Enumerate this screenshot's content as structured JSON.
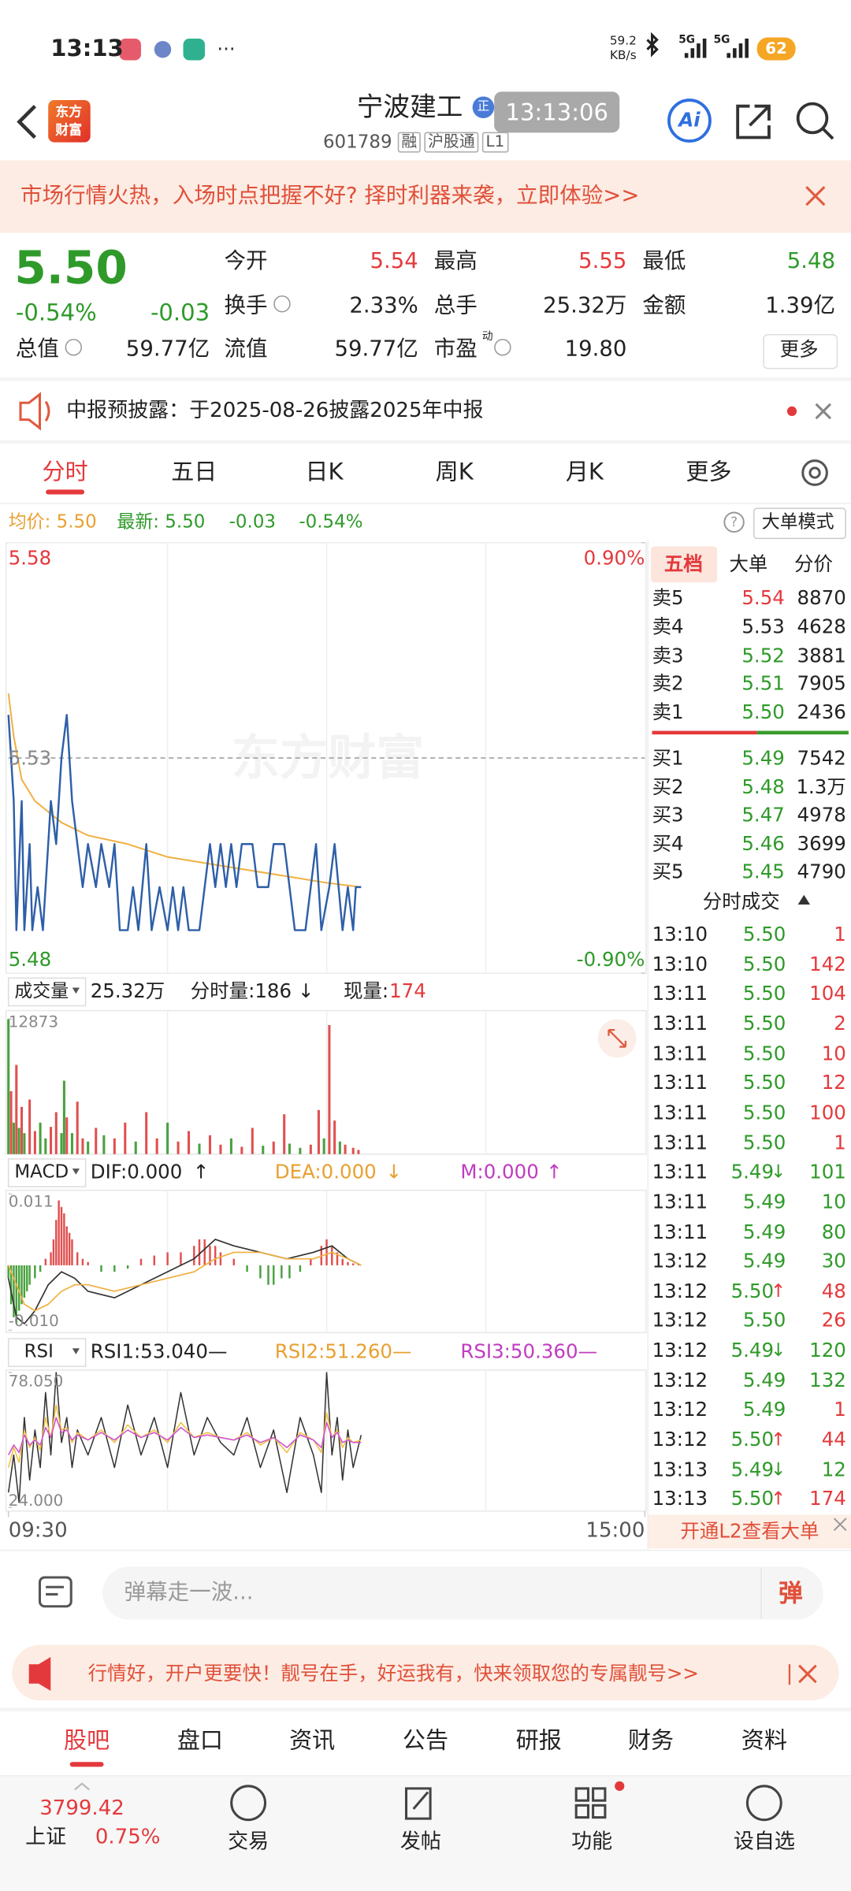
{
  "status_bar": {
    "time": "13:13",
    "speed": "59.2",
    "speed_unit": "KB/s",
    "net1": "5G",
    "net2": "5G",
    "battery": "62"
  },
  "header": {
    "logo_top": "东方",
    "logo_bottom": "财富",
    "name": "宁波建工",
    "badge": "正",
    "time": "13:13:06",
    "code": "601789",
    "tags": [
      "融",
      "沪股通",
      "L1"
    ],
    "ai": "Ai"
  },
  "banner": {
    "text": "市场行情火热，入场时点把握不好? 择时利器来袭，立即体验>>"
  },
  "quote": {
    "price": "5.50",
    "change_pct": "-0.54%",
    "change": "-0.03",
    "fields": [
      {
        "label": "今开",
        "value": "5.54",
        "color": "up"
      },
      {
        "label": "最高",
        "value": "5.55",
        "color": "up"
      },
      {
        "label": "最低",
        "value": "5.48",
        "color": "down"
      },
      {
        "label": "换手",
        "value": "2.33%"
      },
      {
        "label": "总手",
        "value": "25.32万"
      },
      {
        "label": "金额",
        "value": "1.39亿"
      },
      {
        "label": "总值",
        "value": "59.77亿"
      },
      {
        "label": "流值",
        "value": "59.77亿"
      },
      {
        "label": "市盈",
        "sup": "动",
        "value": "19.80"
      }
    ],
    "more": "更多"
  },
  "notice": {
    "text": "中报预披露：于2025-08-26披露2025年中报"
  },
  "tabs": [
    "分时",
    "五日",
    "日K",
    "周K",
    "月K",
    "更多"
  ],
  "legend": {
    "avg": "均价: 5.50",
    "latest": "最新: 5.50",
    "change": "-0.03",
    "pct": "-0.54%",
    "help": "?",
    "mode": "大单模式"
  },
  "chart": {
    "watermark": "东方财富",
    "xlim": [
      0,
      240
    ],
    "xticks": [
      {
        "value": 0,
        "label": "09:30"
      },
      {
        "value": 240,
        "label": "15:00"
      }
    ],
    "price": {
      "ylim": [
        5.48,
        5.58
      ],
      "yticks": [
        5.58,
        5.53,
        5.48
      ],
      "y2lim": [
        -0.9,
        0.9
      ],
      "y2ticks": [
        {
          "value": 0.9,
          "label": "0.90%"
        },
        {
          "value": -0.9,
          "label": "-0.90%"
        }
      ],
      "color": "#2e5fa8",
      "x": [
        0,
        2,
        3,
        5,
        6,
        8,
        9,
        11,
        13,
        16,
        18,
        20,
        22,
        24,
        26,
        28,
        30,
        33,
        35,
        38,
        40,
        42,
        45,
        47,
        49,
        52,
        54,
        57,
        60,
        62,
        64,
        66,
        68,
        72,
        74,
        76,
        78,
        80,
        82,
        84,
        86,
        88,
        92,
        94,
        98,
        100,
        104,
        106,
        108,
        112,
        114,
        116,
        118,
        121,
        123,
        126,
        128,
        130,
        131,
        133
      ],
      "values": [
        5.54,
        5.52,
        5.49,
        5.52,
        5.49,
        5.51,
        5.49,
        5.5,
        5.49,
        5.52,
        5.51,
        5.53,
        5.54,
        5.52,
        5.51,
        5.5,
        5.51,
        5.5,
        5.51,
        5.5,
        5.51,
        5.49,
        5.49,
        5.5,
        5.49,
        5.51,
        5.49,
        5.5,
        5.49,
        5.5,
        5.49,
        5.5,
        5.49,
        5.49,
        5.5,
        5.51,
        5.5,
        5.51,
        5.5,
        5.51,
        5.5,
        5.51,
        5.51,
        5.5,
        5.5,
        5.51,
        5.51,
        5.5,
        5.49,
        5.49,
        5.5,
        5.51,
        5.49,
        5.5,
        5.51,
        5.49,
        5.5,
        5.49,
        5.5,
        5.5
      ]
    },
    "avg": {
      "color": "#f0b040",
      "x": [
        0,
        2,
        5,
        10,
        20,
        30,
        45,
        60,
        80,
        100,
        120,
        133
      ],
      "values": [
        5.545,
        5.535,
        5.525,
        5.52,
        5.515,
        5.512,
        5.51,
        5.507,
        5.505,
        5.503,
        5.501,
        5.5
      ]
    },
    "volume": {
      "label": "成交量",
      "total": "25.32万",
      "minute": "分时量:186",
      "minute_arrow": "↓",
      "current_label": "现量:",
      "current": "174",
      "ylim": [
        0,
        12873
      ],
      "yticks": [
        12873
      ],
      "x": [
        0,
        1,
        2,
        3,
        4,
        5,
        6,
        8,
        10,
        12,
        14,
        16,
        18,
        20,
        21,
        22,
        24,
        26,
        28,
        30,
        33,
        36,
        40,
        44,
        48,
        52,
        56,
        60,
        64,
        68,
        72,
        76,
        80,
        84,
        88,
        92,
        96,
        100,
        104,
        106,
        110,
        114,
        117,
        119,
        121,
        123,
        125,
        127,
        130,
        132
      ],
      "values": [
        12873,
        6000,
        3000,
        8500,
        2500,
        4500,
        2000,
        5200,
        2200,
        3000,
        1500,
        2600,
        4000,
        2000,
        7000,
        3500,
        2000,
        5000,
        1500,
        1200,
        2500,
        1800,
        1500,
        3000,
        1200,
        4000,
        1500,
        3000,
        1200,
        2200,
        1000,
        1800,
        900,
        1500,
        700,
        2500,
        800,
        1200,
        3800,
        1000,
        600,
        900,
        4200,
        1500,
        12300,
        3200,
        1200,
        900,
        600,
        400
      ],
      "up": [
        0,
        1,
        0,
        1,
        0,
        1,
        0,
        1,
        1,
        0,
        0,
        1,
        1,
        0,
        0,
        1,
        0,
        1,
        1,
        0,
        1,
        0,
        1,
        1,
        0,
        1,
        1,
        0,
        1,
        1,
        0,
        1,
        1,
        0,
        1,
        1,
        0,
        1,
        1,
        0,
        0,
        1,
        1,
        0,
        1,
        1,
        0,
        1,
        1,
        1
      ]
    },
    "macd": {
      "label": "MACD",
      "dif": "DIF:0.000",
      "dif_arrow": "↑",
      "dea": "DEA:0.000",
      "dea_arrow": "↓",
      "m": "M:0.000",
      "m_arrow": "↑",
      "ylim": [
        -0.01,
        0.011
      ],
      "yticks": [
        {
          "value": 0.011,
          "label": "0.011"
        },
        {
          "value": -0.01,
          "label": "-0.010"
        }
      ],
      "hist_x": [
        0,
        1,
        2,
        3,
        4,
        5,
        6,
        7,
        8,
        10,
        12,
        14,
        16,
        17,
        18,
        19,
        20,
        21,
        22,
        23,
        24,
        26,
        28,
        30,
        35,
        40,
        45,
        50,
        55,
        60,
        65,
        70,
        72,
        74,
        76,
        78,
        80,
        85,
        90,
        95,
        98,
        100,
        103,
        106,
        110,
        114,
        118,
        120,
        122,
        124,
        126,
        128,
        130,
        132
      ],
      "hist": [
        -0.002,
        -0.006,
        -0.008,
        -0.009,
        -0.007,
        -0.006,
        -0.005,
        -0.004,
        -0.003,
        -0.002,
        -0.001,
        0.001,
        0.002,
        0.004,
        0.007,
        0.01,
        0.009,
        0.008,
        0.006,
        0.005,
        0.004,
        0.002,
        0.001,
        0.0005,
        -0.001,
        -0.001,
        -0.0005,
        0.001,
        0.0015,
        0.002,
        0.002,
        0.003,
        0.004,
        0.004,
        0.003,
        0.003,
        0.002,
        0.001,
        -0.001,
        -0.002,
        -0.003,
        -0.003,
        -0.002,
        -0.002,
        -0.001,
        0.001,
        0.003,
        0.004,
        0.003,
        0.002,
        0.001,
        0.0005,
        0.0003,
        0.0002
      ],
      "line_x": [
        0,
        3,
        6,
        10,
        15,
        20,
        25,
        30,
        40,
        50,
        60,
        70,
        78,
        85,
        95,
        105,
        115,
        122,
        128,
        133
      ],
      "dif_values": [
        -0.002,
        -0.008,
        -0.009,
        -0.007,
        -0.003,
        -0.001,
        -0.002,
        -0.004,
        -0.005,
        -0.003,
        -0.001,
        0.001,
        0.004,
        0.003,
        0.002,
        0.001,
        0.002,
        0.003,
        0.001,
        0.0
      ],
      "dea_values": [
        0,
        -0.003,
        -0.006,
        -0.007,
        -0.006,
        -0.004,
        -0.003,
        -0.003,
        -0.004,
        -0.003,
        -0.002,
        -0.001,
        0.001,
        0.002,
        0.002,
        0.001,
        0.001,
        0.002,
        0.001,
        0.0
      ]
    },
    "rsi": {
      "label": "RSI",
      "rsi1": "RSI1:53.040—",
      "rsi2": "RSI2:51.260—",
      "rsi3": "RSI3:50.360—",
      "ylim": [
        24,
        78.05
      ],
      "yticks": [
        {
          "value": 78.05,
          "label": "78.050"
        },
        {
          "value": 24,
          "label": "24.000"
        }
      ],
      "x": [
        0,
        2,
        4,
        6,
        8,
        10,
        12,
        14,
        16,
        18,
        20,
        22,
        24,
        26,
        30,
        35,
        40,
        45,
        50,
        55,
        60,
        65,
        70,
        75,
        80,
        85,
        90,
        95,
        100,
        105,
        110,
        115,
        118,
        120,
        122,
        124,
        126,
        128,
        130,
        133
      ],
      "rsi1_values": [
        30,
        45,
        26,
        60,
        35,
        55,
        40,
        70,
        45,
        78,
        50,
        60,
        40,
        55,
        45,
        60,
        40,
        65,
        45,
        60,
        40,
        70,
        45,
        60,
        50,
        45,
        60,
        40,
        55,
        30,
        60,
        45,
        30,
        78,
        45,
        60,
        35,
        55,
        40,
        53
      ],
      "rsi2_values": [
        40,
        48,
        42,
        55,
        48,
        52,
        47,
        60,
        52,
        65,
        55,
        56,
        50,
        54,
        51,
        55,
        50,
        57,
        52,
        55,
        50,
        58,
        52,
        54,
        52,
        51,
        54,
        49,
        52,
        46,
        54,
        51,
        46,
        62,
        52,
        55,
        48,
        52,
        50,
        51
      ],
      "rsi3_values": [
        45,
        49,
        46,
        53,
        49,
        51,
        49,
        56,
        52,
        60,
        54,
        55,
        51,
        53,
        51,
        54,
        51,
        55,
        52,
        54,
        51,
        56,
        52,
        53,
        52,
        51,
        53,
        50,
        52,
        48,
        53,
        51,
        48,
        58,
        52,
        54,
        50,
        51,
        50,
        50
      ]
    }
  },
  "book": {
    "tabs": [
      "五档",
      "大单",
      "分价"
    ],
    "asks": [
      {
        "label": "卖5",
        "price": "5.54",
        "vol": "8870",
        "color": "up"
      },
      {
        "label": "卖4",
        "price": "5.53",
        "vol": "4628",
        "color": "flat"
      },
      {
        "label": "卖3",
        "price": "5.52",
        "vol": "3881",
        "color": "down"
      },
      {
        "label": "卖2",
        "price": "5.51",
        "vol": "7905",
        "color": "down"
      },
      {
        "label": "卖1",
        "price": "5.50",
        "vol": "2436",
        "color": "down"
      }
    ],
    "bids": [
      {
        "label": "买1",
        "price": "5.49",
        "vol": "7542",
        "color": "down"
      },
      {
        "label": "买2",
        "price": "5.48",
        "vol": "1.3万",
        "color": "down"
      },
      {
        "label": "买3",
        "price": "5.47",
        "vol": "4978",
        "color": "down"
      },
      {
        "label": "买4",
        "price": "5.46",
        "vol": "3699",
        "color": "down"
      },
      {
        "label": "买5",
        "price": "5.45",
        "vol": "4790",
        "color": "down"
      }
    ],
    "trades_title": "分时成交",
    "trades": [
      {
        "time": "13:10",
        "price": "5.50",
        "vol": "1",
        "side": "b"
      },
      {
        "time": "13:10",
        "price": "5.50",
        "vol": "142",
        "side": "b"
      },
      {
        "time": "13:11",
        "price": "5.50",
        "vol": "104",
        "side": "b"
      },
      {
        "time": "13:11",
        "price": "5.50",
        "vol": "2",
        "side": "b"
      },
      {
        "time": "13:11",
        "price": "5.50",
        "vol": "10",
        "side": "b"
      },
      {
        "time": "13:11",
        "price": "5.50",
        "vol": "12",
        "side": "b"
      },
      {
        "time": "13:11",
        "price": "5.50",
        "vol": "100",
        "side": "b"
      },
      {
        "time": "13:11",
        "price": "5.50",
        "vol": "1",
        "side": "b"
      },
      {
        "time": "13:11",
        "price": "5.49",
        "dir": "↓",
        "vol": "101",
        "side": "s"
      },
      {
        "time": "13:11",
        "price": "5.49",
        "vol": "10",
        "side": "s"
      },
      {
        "time": "13:11",
        "price": "5.49",
        "vol": "80",
        "side": "s"
      },
      {
        "time": "13:12",
        "price": "5.49",
        "vol": "30",
        "side": "s"
      },
      {
        "time": "13:12",
        "price": "5.50",
        "dir": "↑",
        "vol": "48",
        "side": "b"
      },
      {
        "time": "13:12",
        "price": "5.50",
        "vol": "26",
        "side": "b"
      },
      {
        "time": "13:12",
        "price": "5.49",
        "dir": "↓",
        "vol": "120",
        "side": "s"
      },
      {
        "time": "13:12",
        "price": "5.49",
        "vol": "132",
        "side": "s"
      },
      {
        "time": "13:12",
        "price": "5.49",
        "vol": "1",
        "side": "b"
      },
      {
        "time": "13:12",
        "price": "5.50",
        "dir": "↑",
        "vol": "44",
        "side": "b"
      },
      {
        "time": "13:13",
        "price": "5.49",
        "dir": "↓",
        "vol": "12",
        "side": "s"
      },
      {
        "time": "13:13",
        "price": "5.50",
        "dir": "↑",
        "vol": "174",
        "side": "b"
      }
    ],
    "l2": "开通L2查看大单"
  },
  "comment": {
    "placeholder": "弹幕走一波...",
    "button": "弹"
  },
  "ad": {
    "text": "行情好，开户更要快！靓号在手，好运我有，快来领取您的专属靓号>>"
  },
  "bottom_tabs": [
    "股吧",
    "盘口",
    "资讯",
    "公告",
    "研报",
    "财务",
    "资料"
  ],
  "nav": {
    "index_value": "3799.42",
    "index_name": "上证",
    "index_pct": "0.75%",
    "items": [
      "交易",
      "发帖",
      "功能",
      "设自选"
    ]
  }
}
